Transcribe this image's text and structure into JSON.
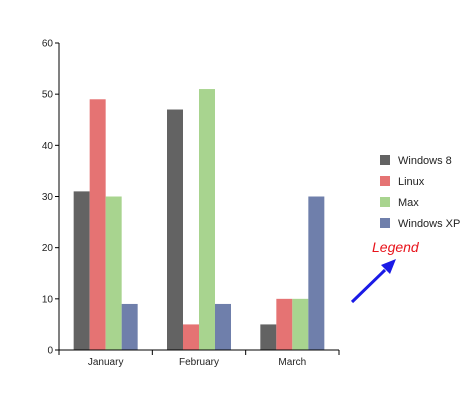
{
  "chart_data": {
    "type": "bar",
    "categories": [
      "January",
      "February",
      "March"
    ],
    "series": [
      {
        "name": "Windows 8",
        "values": [
          31,
          47,
          5
        ],
        "color": "#636363"
      },
      {
        "name": "Linux",
        "values": [
          49,
          5,
          10
        ],
        "color": "#e57373"
      },
      {
        "name": "Max",
        "values": [
          30,
          51,
          10
        ],
        "color": "#a8d48f"
      },
      {
        "name": "Windows XP",
        "values": [
          9,
          9,
          30
        ],
        "color": "#6f7fab"
      }
    ],
    "yticks": [
      0,
      10,
      20,
      30,
      40,
      50,
      60
    ],
    "ylim": [
      0,
      60
    ],
    "grid": false,
    "legend_position": "right",
    "annotation": {
      "text": "Legend",
      "color": "#e8141c",
      "arrow_color": "#1a1ae6"
    }
  }
}
